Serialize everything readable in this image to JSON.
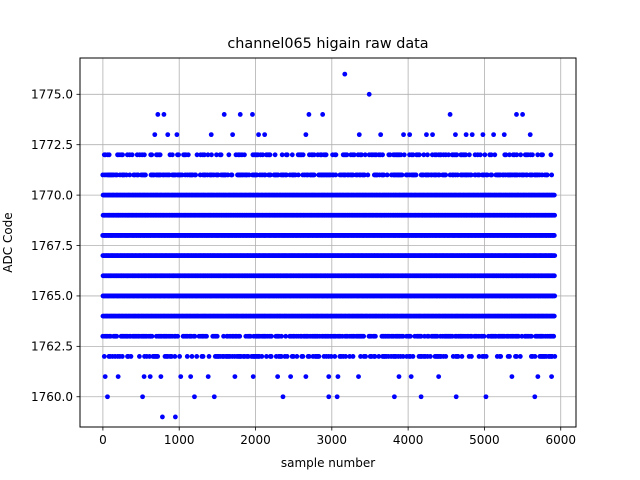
{
  "chart_data": {
    "type": "scatter",
    "title": "channel065 higain raw data",
    "xlabel": "sample number",
    "ylabel": "ADC Code",
    "xlim": [
      -300,
      6200
    ],
    "ylim": [
      1758.5,
      1776.8
    ],
    "xticks": [
      0,
      1000,
      2000,
      3000,
      4000,
      5000,
      6000
    ],
    "xtick_labels": [
      "0",
      "1000",
      "2000",
      "3000",
      "4000",
      "5000",
      "6000"
    ],
    "yticks": [
      1760.0,
      1762.5,
      1765.0,
      1767.5,
      1770.0,
      1772.5,
      1775.0
    ],
    "ytick_labels": [
      "1760.0",
      "1762.5",
      "1765.0",
      "1767.5",
      "1770.0",
      "1772.5",
      "1775.0"
    ],
    "grid": true,
    "marker_color": "#0000ff",
    "series": [
      {
        "dense_levels": [
          1764,
          1765,
          1766,
          1767,
          1768,
          1769,
          1770
        ],
        "dense_x_range": [
          0,
          5920
        ],
        "medium_levels": [
          1763,
          1771
        ],
        "sparse_levels": [
          1762,
          1772
        ],
        "points": [
          [
            3170,
            1776
          ],
          [
            3490,
            1775
          ],
          [
            720,
            1774
          ],
          [
            800,
            1774
          ],
          [
            1590,
            1774
          ],
          [
            1800,
            1774
          ],
          [
            1960,
            1774
          ],
          [
            2700,
            1774
          ],
          [
            2880,
            1774
          ],
          [
            4550,
            1774
          ],
          [
            5420,
            1774
          ],
          [
            5500,
            1774
          ],
          [
            680,
            1773
          ],
          [
            850,
            1773
          ],
          [
            970,
            1773
          ],
          [
            1420,
            1773
          ],
          [
            1700,
            1773
          ],
          [
            2040,
            1773
          ],
          [
            2120,
            1773
          ],
          [
            2660,
            1773
          ],
          [
            3360,
            1773
          ],
          [
            3640,
            1773
          ],
          [
            3940,
            1773
          ],
          [
            4020,
            1773
          ],
          [
            4240,
            1773
          ],
          [
            4320,
            1773
          ],
          [
            4620,
            1773
          ],
          [
            4760,
            1773
          ],
          [
            4840,
            1773
          ],
          [
            4980,
            1773
          ],
          [
            5120,
            1773
          ],
          [
            5260,
            1773
          ],
          [
            5600,
            1773
          ],
          [
            30,
            1761
          ],
          [
            200,
            1761
          ],
          [
            540,
            1761
          ],
          [
            620,
            1761
          ],
          [
            760,
            1761
          ],
          [
            1020,
            1761
          ],
          [
            1150,
            1761
          ],
          [
            1380,
            1761
          ],
          [
            1730,
            1761
          ],
          [
            1970,
            1761
          ],
          [
            2290,
            1761
          ],
          [
            2460,
            1761
          ],
          [
            2660,
            1761
          ],
          [
            2960,
            1761
          ],
          [
            3080,
            1761
          ],
          [
            3350,
            1761
          ],
          [
            3880,
            1761
          ],
          [
            4040,
            1761
          ],
          [
            4400,
            1761
          ],
          [
            5360,
            1761
          ],
          [
            5700,
            1761
          ],
          [
            5880,
            1761
          ],
          [
            60,
            1760
          ],
          [
            520,
            1760
          ],
          [
            1200,
            1760
          ],
          [
            1460,
            1760
          ],
          [
            2360,
            1760
          ],
          [
            2960,
            1760
          ],
          [
            3070,
            1760
          ],
          [
            3820,
            1760
          ],
          [
            4170,
            1760
          ],
          [
            4630,
            1760
          ],
          [
            5020,
            1760
          ],
          [
            5660,
            1760
          ],
          [
            780,
            1759
          ],
          [
            950,
            1759
          ]
        ]
      }
    ]
  }
}
